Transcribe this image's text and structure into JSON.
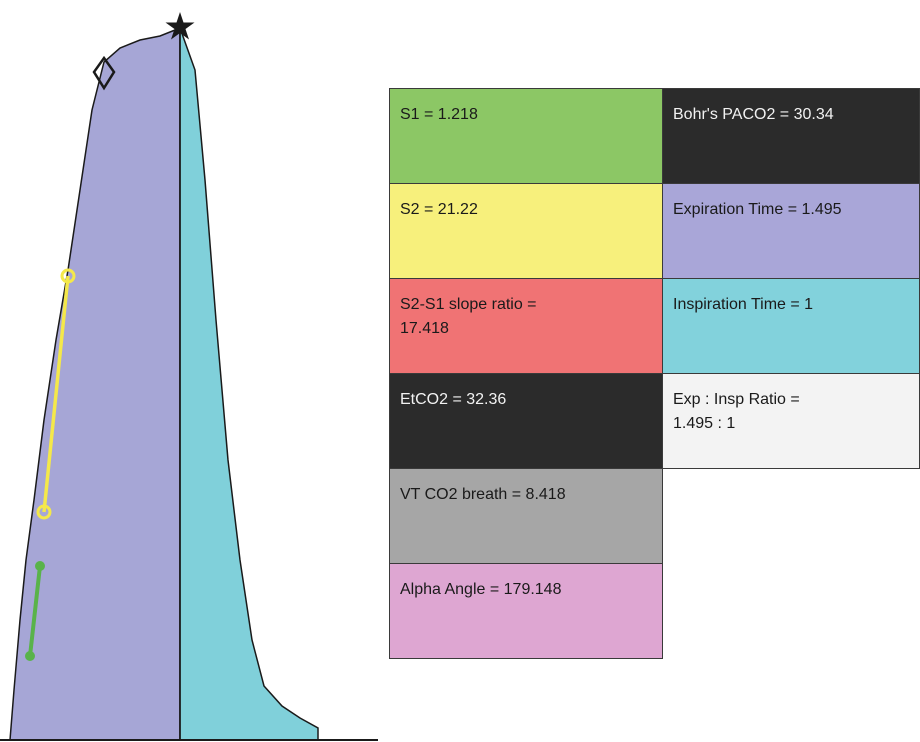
{
  "colors": {
    "expiration": "#a6a6d6",
    "inspiration": "#80d0da",
    "s1_segment": "#59b34a",
    "s2_segment": "#f4e84a",
    "outline": "#1a1a1a"
  },
  "icons": {
    "peak_marker": "star-icon",
    "etco2_marker": "diamond-icon"
  },
  "table": {
    "s1": "S1 = 1.218",
    "s2": "S2 = 21.22",
    "slope_ratio": "S2-S1 slope ratio =\n17.418",
    "etco2": "EtCO2 = 32.36",
    "vt_co2": "VT CO2 breath = 8.418",
    "alpha_angle": "Alpha Angle = 179.148",
    "bohr_paco2": "Bohr's PACO2 = 30.34",
    "expiration_time": "Expiration Time = 1.495",
    "inspiration_time": "Inspiration Time = 1",
    "exp_insp_ratio": "Exp  :  Insp Ratio  =\n1.495  :  1"
  },
  "cell_colors": {
    "s1": "#8cc765",
    "s2": "#f7f07c",
    "slope_ratio": "#f07374",
    "etco2": "#2b2b2b",
    "vt_co2": "#a6a6a6",
    "alpha_angle": "#dea6d2",
    "bohr_paco2": "#2b2b2b",
    "expiration_time": "#a9a6d8",
    "inspiration_time": "#82d2dc",
    "exp_insp_ratio": "#f3f3f3"
  }
}
